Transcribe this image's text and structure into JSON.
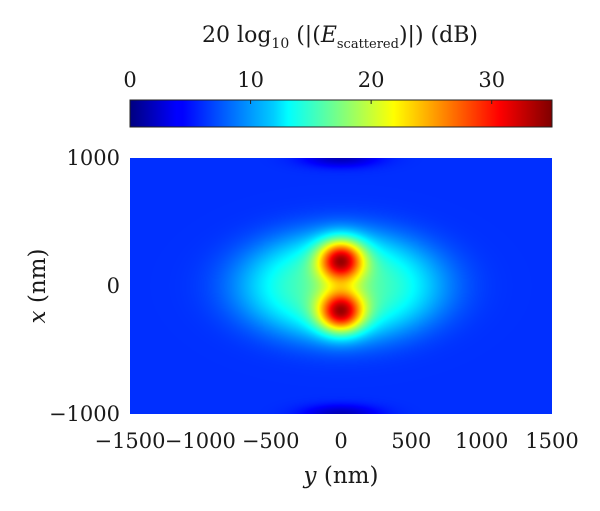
{
  "chart_data": {
    "type": "heatmap",
    "colorbar": {
      "title_prefix": "20 log",
      "title_sub": "10",
      "title_mid": " (|(",
      "title_var": "E",
      "title_var_sub": "scattered",
      "title_suffix": ")|) (dB)",
      "range": [
        0,
        35
      ],
      "ticks": [
        0,
        10,
        20,
        30
      ],
      "tick_labels": [
        "0",
        "10",
        "20",
        "30"
      ],
      "colormap": "jet",
      "placement": "top"
    },
    "xlabel_var": "y",
    "xlabel_unit": " (nm)",
    "ylabel_var": "x",
    "ylabel_unit": " (nm)",
    "xlim": [
      -1500,
      1500
    ],
    "ylim": [
      -1000,
      1000
    ],
    "xticks": [
      -1500,
      -1000,
      -500,
      0,
      500,
      1000,
      1500
    ],
    "xtick_labels": [
      "−1500",
      "−1000",
      "−500",
      "0",
      "500",
      "1000",
      "1500"
    ],
    "yticks": [
      -1000,
      0,
      1000
    ],
    "ytick_labels": [
      "−1000",
      "0",
      "1000"
    ],
    "field": {
      "background_db": 6,
      "halo": {
        "center": [
          0,
          0
        ],
        "semi_axis_y": 780,
        "semi_axis_x": 460,
        "peak_db": 16
      },
      "lobes": [
        {
          "center": [
            0,
            200
          ],
          "radius": 150,
          "peak_db": 35
        },
        {
          "center": [
            0,
            -200
          ],
          "radius": 150,
          "peak_db": 35
        }
      ],
      "dips": [
        {
          "center": [
            0,
            1000
          ],
          "level_db": 2
        },
        {
          "center": [
            0,
            -1000
          ],
          "level_db": 2
        }
      ]
    }
  }
}
